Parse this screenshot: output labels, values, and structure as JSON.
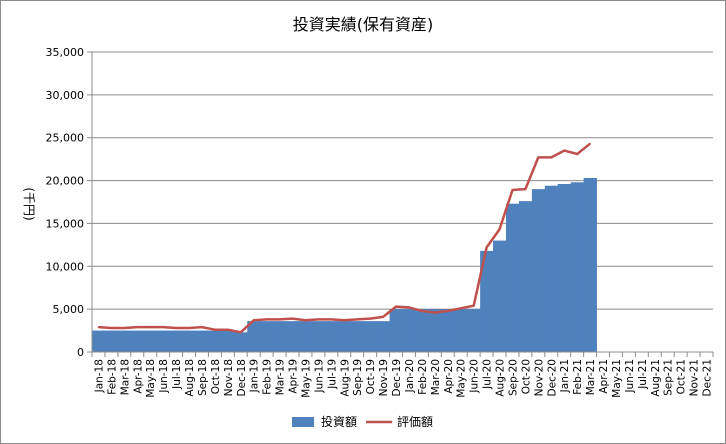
{
  "chart_data": {
    "type": "bar+line",
    "title": "投資実績(保有資産)",
    "ylabel": "(千円)",
    "xlabel": "",
    "ylim": [
      0,
      35000
    ],
    "yticks": [
      "0",
      "5,000",
      "10,000",
      "15,000",
      "20,000",
      "25,000",
      "30,000",
      "35,000"
    ],
    "grid": "horizontal",
    "legend_position": "bottom",
    "categories": [
      "Jan-18",
      "Feb-18",
      "Mar-18",
      "Apr-18",
      "May-18",
      "Jun-18",
      "Jul-18",
      "Aug-18",
      "Sep-18",
      "Oct-18",
      "Nov-18",
      "Dec-18",
      "Jan-19",
      "Feb-19",
      "Mar-19",
      "Apr-19",
      "May-19",
      "Jun-19",
      "Jul-19",
      "Aug-19",
      "Sep-19",
      "Oct-19",
      "Nov-19",
      "Dec-19",
      "Jan-20",
      "Feb-20",
      "Mar-20",
      "Apr-20",
      "May-20",
      "Jun-20",
      "Jul-20",
      "Aug-20",
      "Sep-20",
      "Oct-20",
      "Nov-20",
      "Dec-20",
      "Jan-21",
      "Feb-21",
      "Mar-21",
      "Apr-21",
      "May-21",
      "Jun-21",
      "Jul-21",
      "Aug-21",
      "Sep-21",
      "Oct-21",
      "Nov-21",
      "Dec-21"
    ],
    "series": [
      {
        "name": "投資額",
        "type": "bar",
        "color": "#4f81bd",
        "values": [
          2500,
          2500,
          2500,
          2500,
          2500,
          2500,
          2500,
          2500,
          2500,
          2500,
          2500,
          2300,
          3600,
          3600,
          3600,
          3600,
          3600,
          3600,
          3600,
          3600,
          3600,
          3600,
          3600,
          5000,
          5000,
          5000,
          5000,
          5000,
          5000,
          5000,
          11800,
          13000,
          17300,
          17600,
          19000,
          19400,
          19600,
          19800,
          20300,
          null,
          null,
          null,
          null,
          null,
          null,
          null,
          null,
          null
        ]
      },
      {
        "name": "評価額",
        "type": "line",
        "color": "#c0504d",
        "values": [
          2900,
          2800,
          2800,
          2900,
          2900,
          2900,
          2800,
          2800,
          2900,
          2600,
          2600,
          2300,
          3700,
          3800,
          3800,
          3900,
          3700,
          3800,
          3800,
          3700,
          3800,
          3900,
          4100,
          5300,
          5200,
          4800,
          4600,
          4800,
          5100,
          5400,
          12200,
          14300,
          18900,
          19000,
          22700,
          22700,
          23500,
          23100,
          24300,
          null,
          null,
          null,
          null,
          null,
          null,
          null,
          null,
          null
        ]
      }
    ]
  }
}
